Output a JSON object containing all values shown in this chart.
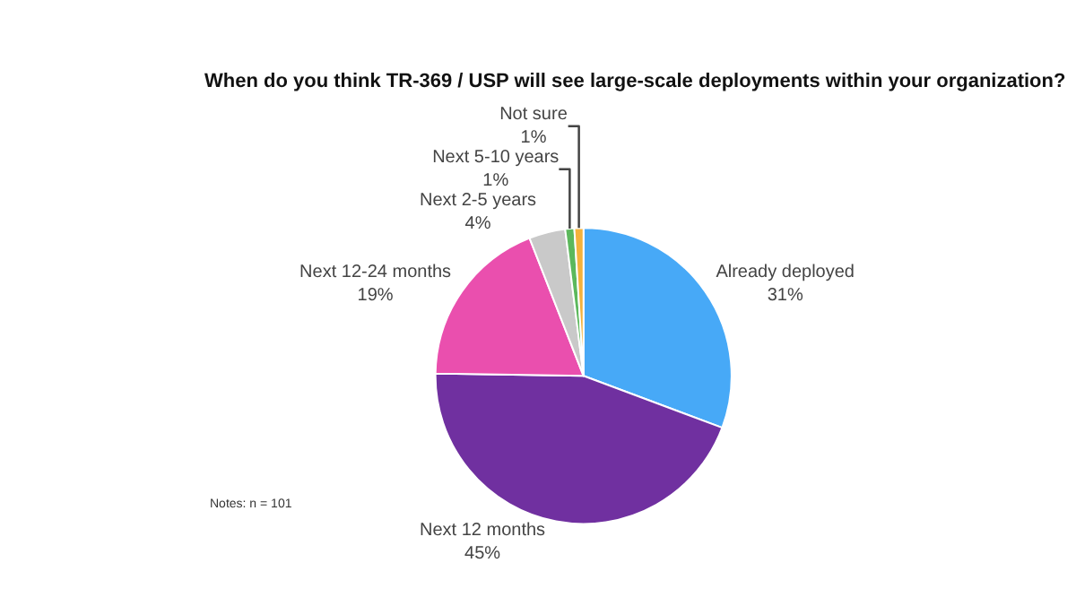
{
  "chart_data": {
    "type": "pie",
    "title": "When do you think TR-369 / USP will see large-scale deployments within your organization?",
    "categories": [
      "Already deployed",
      "Next 12 months",
      "Next 12-24 months",
      "Next 2-5 years",
      "Next 5-10 years",
      "Not sure"
    ],
    "values": [
      31,
      45,
      19,
      4,
      1,
      1
    ],
    "value_labels": [
      "31%",
      "45%",
      "19%",
      "4%",
      "1%",
      "1%"
    ],
    "colors": [
      "#47a9f7",
      "#7030a0",
      "#ea4fae",
      "#c9c9c9",
      "#5cb85c",
      "#f4b23c"
    ],
    "legend": false,
    "annotations": [
      "Notes: n = 101"
    ]
  }
}
